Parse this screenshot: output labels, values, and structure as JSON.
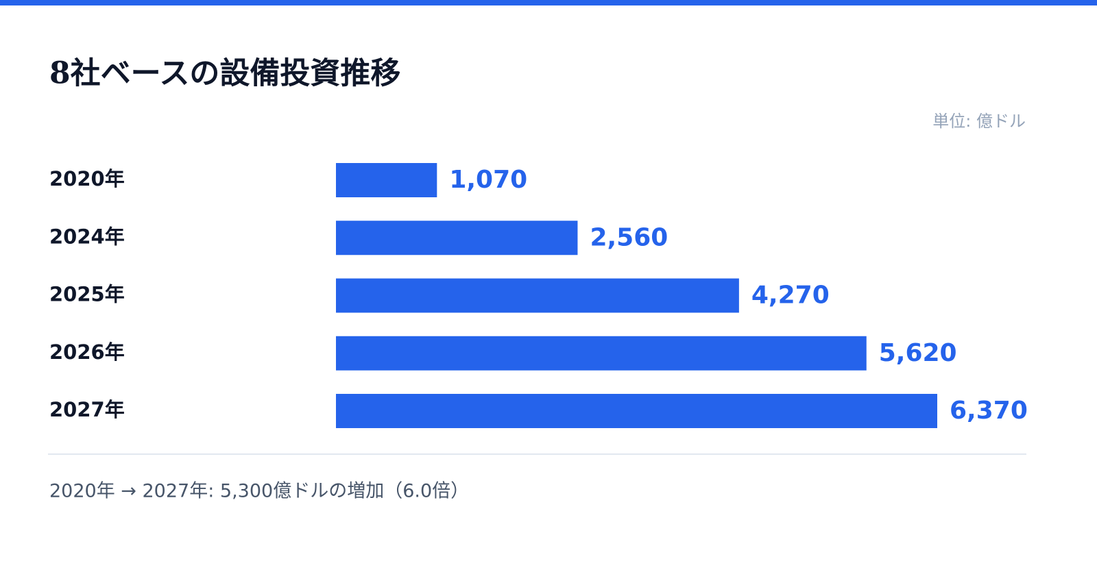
{
  "chart_data": {
    "type": "bar",
    "orientation": "horizontal",
    "title": "8社ベースの設備投資推移",
    "unit": "単位: 億ドル",
    "categories": [
      "2020年",
      "2024年",
      "2025年",
      "2026年",
      "2027年"
    ],
    "values": [
      1070,
      2560,
      4270,
      5620,
      6370
    ],
    "value_labels": [
      "1,070",
      "2,560",
      "4,270",
      "5,620",
      "6,370"
    ],
    "color": "#2563eb",
    "note": "2020年 → 2027年: 5,300億ドルの増加（6.0倍）"
  }
}
